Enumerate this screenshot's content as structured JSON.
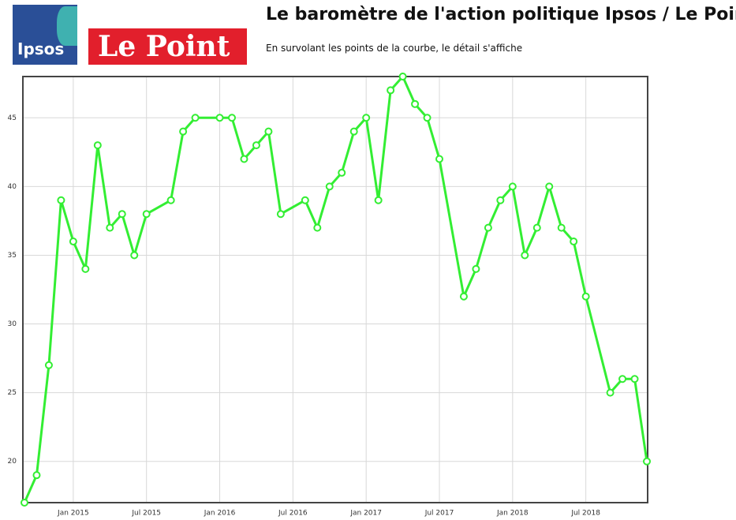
{
  "logos": [
    "Ipsos",
    "Le Point"
  ],
  "chart_data": {
    "type": "line",
    "title": "Le baromètre de l'action politique Ipsos / Le Point",
    "subtitle": "En survolant les points de la courbe, le détail s'affiche",
    "x": [
      "2014-09",
      "2014-10",
      "2014-11",
      "2014-12",
      "2015-01",
      "2015-02",
      "2015-03",
      "2015-04",
      "2015-05",
      "2015-06",
      "2015-07",
      "2015-09",
      "2015-10",
      "2015-11",
      "2016-01",
      "2016-02",
      "2016-03",
      "2016-04",
      "2016-05",
      "2016-06",
      "2016-08",
      "2016-09",
      "2016-10",
      "2016-11",
      "2016-12",
      "2017-01",
      "2017-02",
      "2017-03",
      "2017-04",
      "2017-05",
      "2017-06",
      "2017-07",
      "2017-09",
      "2017-10",
      "2017-11",
      "2017-12",
      "2018-01",
      "2018-02",
      "2018-03",
      "2018-04",
      "2018-05",
      "2018-06",
      "2018-07",
      "2018-09",
      "2018-10",
      "2018-11",
      "2018-12"
    ],
    "values": [
      17,
      19,
      27,
      39,
      36,
      34,
      43,
      37,
      38,
      35,
      38,
      39,
      44,
      45,
      45,
      45,
      42,
      43,
      44,
      38,
      39,
      37,
      40,
      41,
      44,
      45,
      39,
      47,
      48,
      46,
      45,
      42,
      32,
      34,
      37,
      39,
      40,
      35,
      37,
      40,
      37,
      36,
      32,
      25,
      26,
      26,
      20
    ],
    "color": "#33ee33",
    "xlim": [
      "2014-09",
      "2018-12"
    ],
    "xticks": [
      {
        "value": "2015-01",
        "label": "Jan 2015"
      },
      {
        "value": "2015-07",
        "label": "Jul 2015"
      },
      {
        "value": "2016-01",
        "label": "Jan 2016"
      },
      {
        "value": "2016-07",
        "label": "Jul 2016"
      },
      {
        "value": "2017-01",
        "label": "Jan 2017"
      },
      {
        "value": "2017-07",
        "label": "Jul 2017"
      },
      {
        "value": "2018-01",
        "label": "Jan 2018"
      },
      {
        "value": "2018-07",
        "label": "Jul 2018"
      }
    ],
    "ylim": [
      17,
      48
    ],
    "yticks": [
      20,
      25,
      30,
      35,
      40,
      45
    ],
    "grid": true
  }
}
